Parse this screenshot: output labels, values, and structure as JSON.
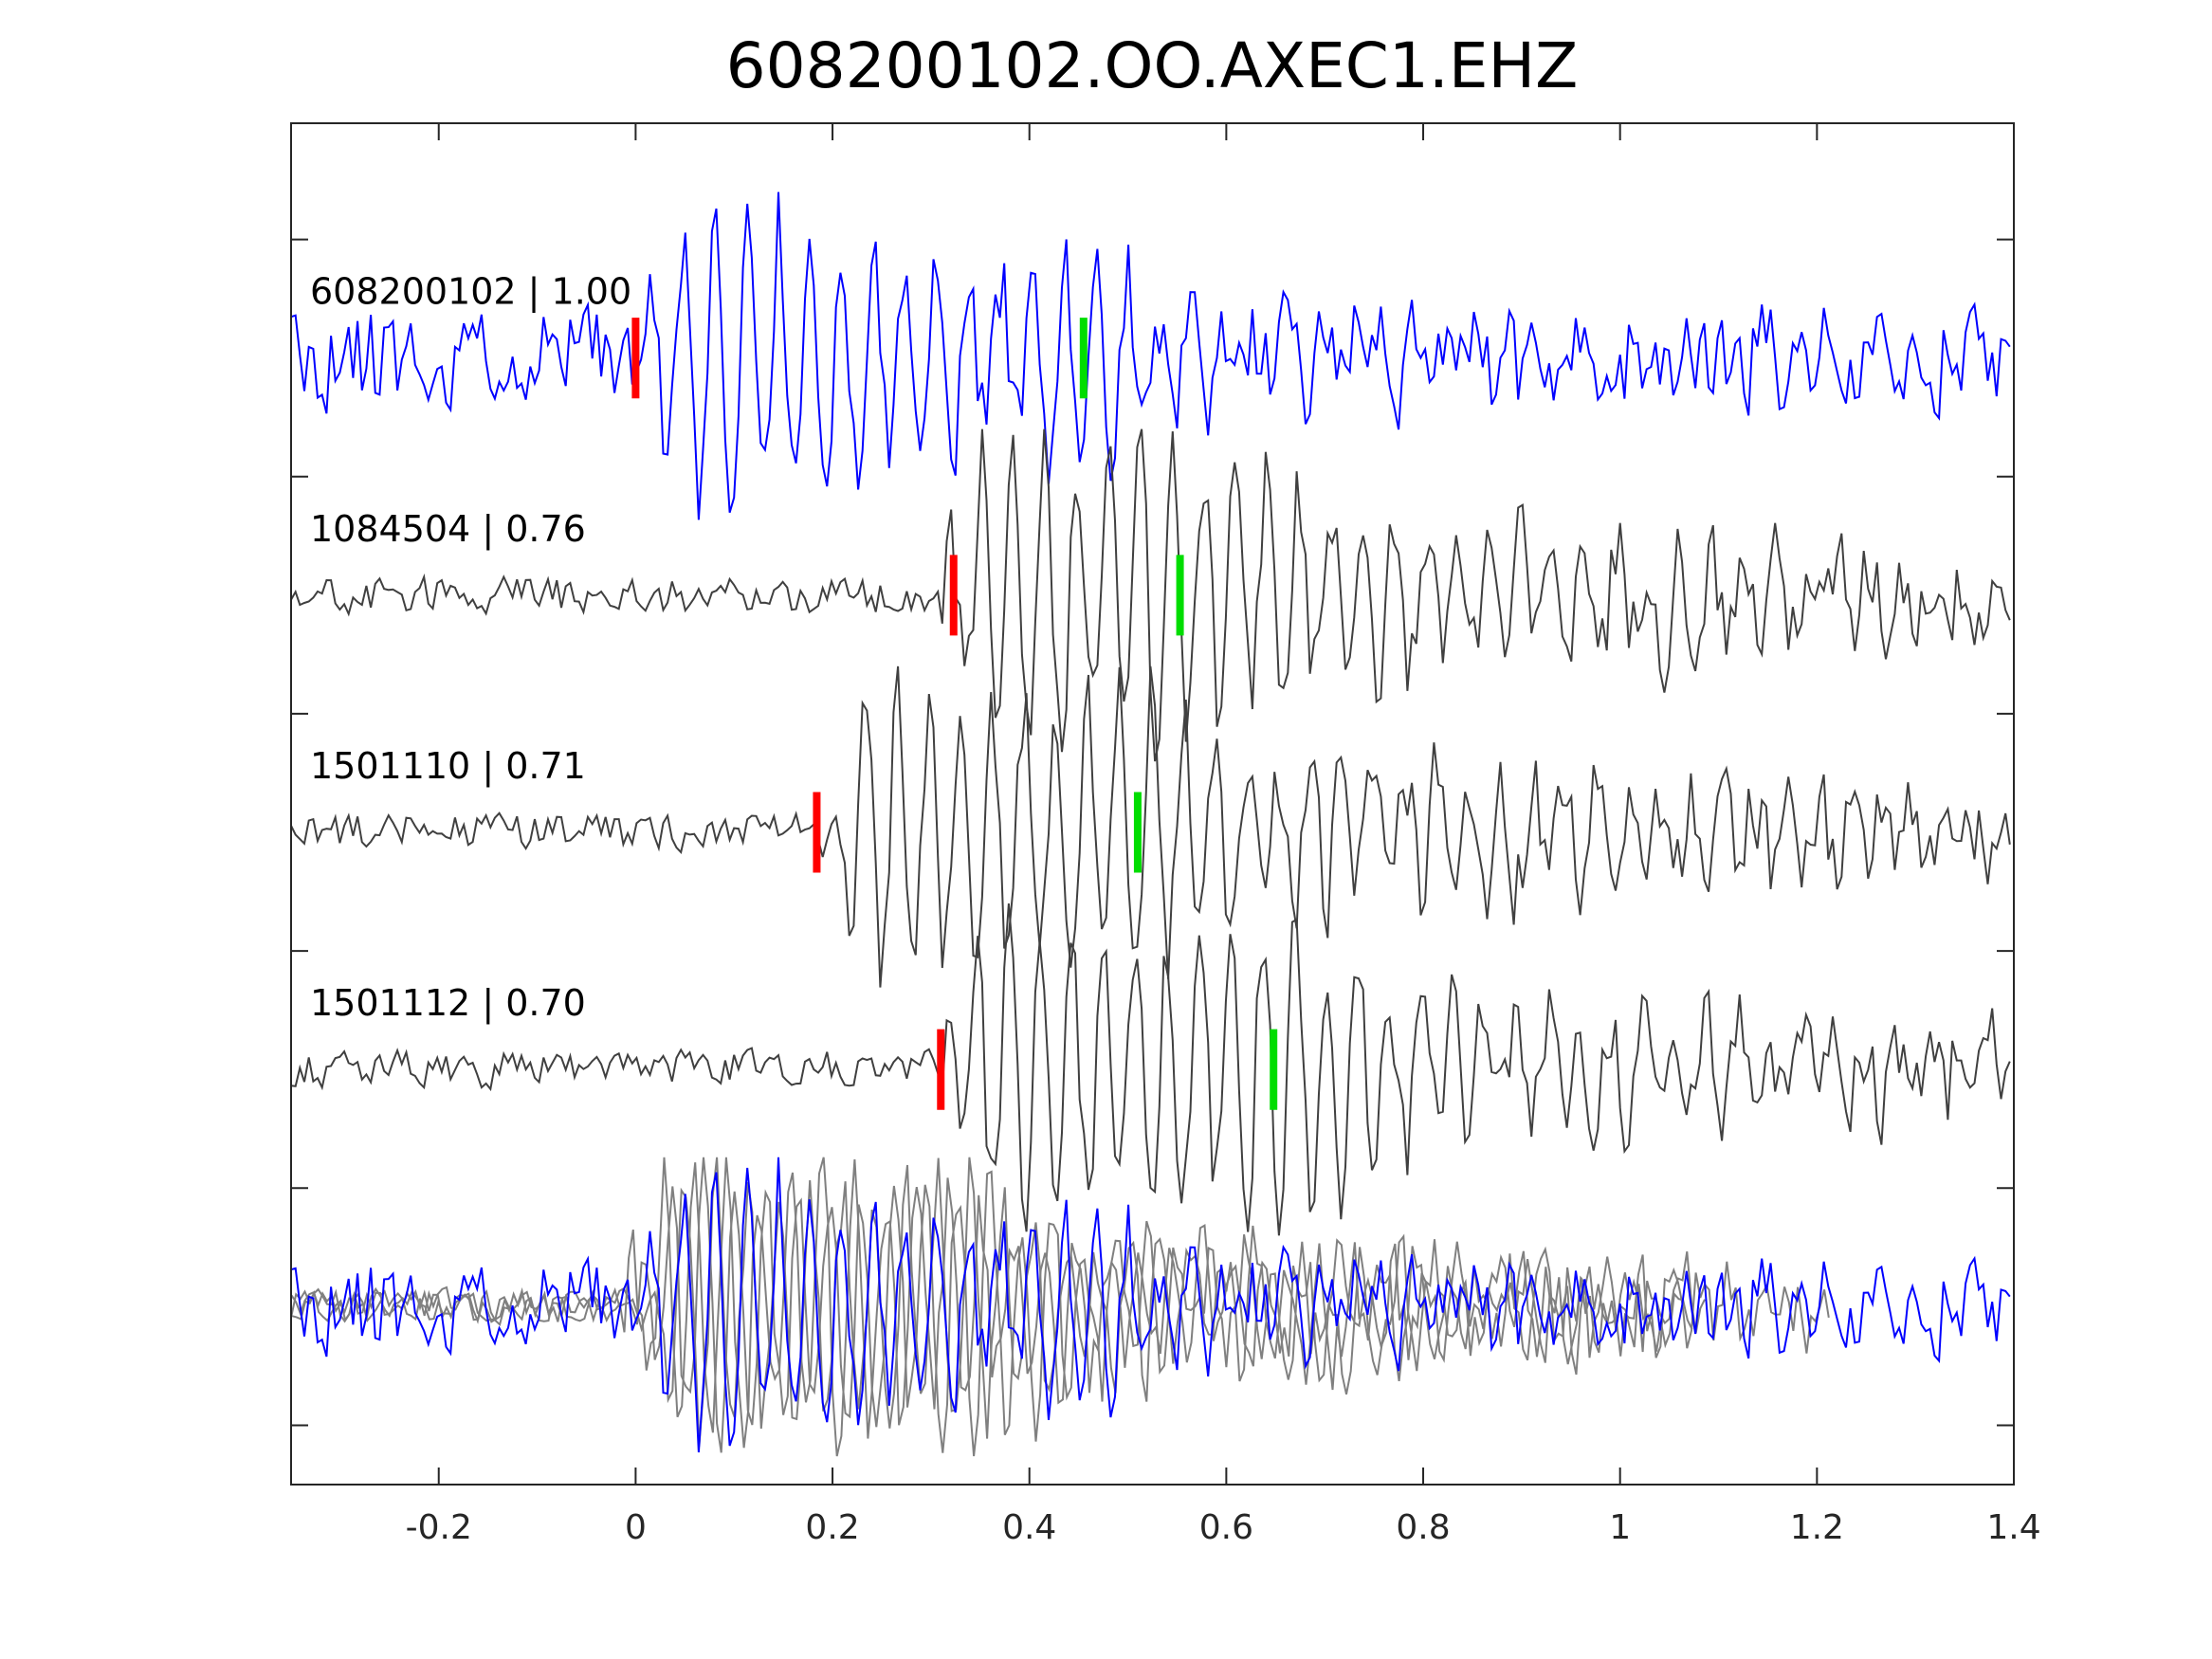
{
  "chart_data": {
    "type": "line",
    "title": "608200102.OO.AXEC1.EHZ",
    "xlabel": "",
    "ylabel": "",
    "xlim": [
      -0.35,
      1.4
    ],
    "ylim": [
      -0.25,
      5.49
    ],
    "xticks": [
      -0.2,
      0,
      0.2,
      0.4,
      0.6,
      0.8,
      1,
      1.2,
      1.4
    ],
    "xtick_labels": [
      "-0.2",
      "0",
      "0.2",
      "0.4",
      "0.6",
      "0.8",
      "1",
      "1.2",
      "1.4"
    ],
    "yticks": [
      0,
      1,
      2,
      3,
      4,
      5
    ],
    "grid": false,
    "colors": {
      "template": "#0000ff",
      "match": "#404040",
      "overlay_match": "#808080",
      "p_pick": "#ff0000",
      "s_pick": "#00dd00"
    },
    "series": [
      {
        "name": "608200102",
        "label": "608200102 | 1.00",
        "correlation": 1.0,
        "offset": 4.5,
        "color": "#0000ff",
        "p_pick": 0.0,
        "s_pick": 0.455,
        "signal_start": 0.0,
        "seed": 11
      },
      {
        "name": "1084504",
        "label": "1084504 | 0.76",
        "correlation": 0.76,
        "offset": 3.5,
        "color": "#404040",
        "p_pick": 0.323,
        "s_pick": 0.553,
        "signal_start": 0.3,
        "seed": 23
      },
      {
        "name": "1501110",
        "label": "1501110 | 0.71",
        "correlation": 0.71,
        "offset": 2.5,
        "color": "#404040",
        "p_pick": 0.184,
        "s_pick": 0.51,
        "signal_start": 0.19,
        "seed": 37
      },
      {
        "name": "1501112",
        "label": "1501112 | 0.70",
        "correlation": 0.7,
        "offset": 1.5,
        "color": "#404040",
        "p_pick": 0.31,
        "s_pick": 0.648,
        "signal_start": 0.31,
        "seed": 51
      }
    ],
    "overlay": {
      "offset": 0.5,
      "description_series": [
        "608200102",
        "1084504",
        "1501110",
        "1501112"
      ]
    }
  }
}
